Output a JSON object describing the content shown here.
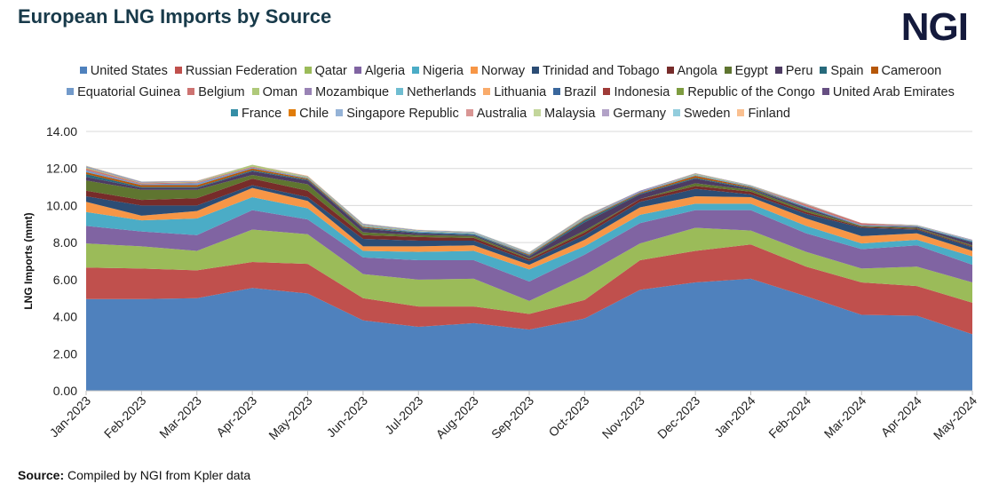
{
  "title": "European LNG Imports by Source",
  "logo": "NGI",
  "source_label": "Source:",
  "source_text": "Compiled by NGI from Kpler data",
  "chart_data": {
    "type": "area",
    "stacked": true,
    "title": "European LNG Imports by Source",
    "xlabel": "",
    "ylabel": "LNG Imports (mmt)",
    "ylim": [
      0,
      14
    ],
    "yticks": [
      "0.00",
      "2.00",
      "4.00",
      "6.00",
      "8.00",
      "10.00",
      "12.00",
      "14.00"
    ],
    "grid": true,
    "legend": "top",
    "categories": [
      "Jan-2023",
      "Feb-2023",
      "Mar-2023",
      "Apr-2023",
      "May-2023",
      "Jun-2023",
      "Jul-2023",
      "Aug-2023",
      "Sep-2023",
      "Oct-2023",
      "Nov-2023",
      "Dec-2023",
      "Jan-2024",
      "Feb-2024",
      "Mar-2024",
      "Apr-2024",
      "May-2024"
    ],
    "series": [
      {
        "name": "United States",
        "color": "#4F81BD",
        "values": [
          4.95,
          4.95,
          5.0,
          5.55,
          5.25,
          3.8,
          3.45,
          3.65,
          3.3,
          3.9,
          5.45,
          5.85,
          6.05,
          5.1,
          4.1,
          4.05,
          3.05
        ]
      },
      {
        "name": "Russian Federation",
        "color": "#C0504D",
        "values": [
          1.7,
          1.65,
          1.5,
          1.4,
          1.6,
          1.2,
          1.1,
          0.9,
          0.85,
          1.0,
          1.6,
          1.7,
          1.85,
          1.6,
          1.75,
          1.6,
          1.7
        ]
      },
      {
        "name": "Qatar",
        "color": "#9BBB59",
        "values": [
          1.3,
          1.2,
          1.05,
          1.75,
          1.6,
          1.3,
          1.45,
          1.5,
          0.7,
          1.35,
          0.9,
          1.25,
          0.75,
          0.8,
          0.75,
          1.05,
          1.1
        ]
      },
      {
        "name": "Algeria",
        "color": "#8064A2",
        "values": [
          0.95,
          0.8,
          0.85,
          1.05,
          0.8,
          0.9,
          1.05,
          1.0,
          1.05,
          1.1,
          1.1,
          0.95,
          1.1,
          1.0,
          1.05,
          1.15,
          0.95
        ]
      },
      {
        "name": "Nigeria",
        "color": "#4BACC6",
        "values": [
          0.75,
          0.6,
          0.9,
          0.7,
          0.6,
          0.35,
          0.45,
          0.5,
          0.65,
          0.45,
          0.45,
          0.35,
          0.35,
          0.4,
          0.3,
          0.3,
          0.45
        ]
      },
      {
        "name": "Norway",
        "color": "#F79646",
        "values": [
          0.55,
          0.25,
          0.4,
          0.5,
          0.4,
          0.25,
          0.3,
          0.3,
          0.25,
          0.35,
          0.4,
          0.4,
          0.35,
          0.4,
          0.4,
          0.35,
          0.3
        ]
      },
      {
        "name": "Trinidad and Tobago",
        "color": "#2C4D75",
        "values": [
          0.3,
          0.55,
          0.3,
          0.15,
          0.2,
          0.4,
          0.3,
          0.25,
          0.2,
          0.25,
          0.3,
          0.4,
          0.15,
          0.25,
          0.45,
          0.2,
          0.2
        ]
      },
      {
        "name": "Angola",
        "color": "#772C2A",
        "values": [
          0.3,
          0.3,
          0.4,
          0.35,
          0.35,
          0.2,
          0.2,
          0.15,
          0.1,
          0.15,
          0.15,
          0.15,
          0.15,
          0.1,
          0.05,
          0.05,
          0.05
        ]
      },
      {
        "name": "Egypt",
        "color": "#5F7530",
        "values": [
          0.55,
          0.55,
          0.45,
          0.2,
          0.35,
          0.15,
          0.1,
          0.1,
          0.05,
          0.1,
          0.0,
          0.15,
          0.1,
          0.1,
          0.05,
          0.05,
          0.05
        ]
      },
      {
        "name": "Peru",
        "color": "#4D3B62",
        "values": [
          0.2,
          0.1,
          0.1,
          0.2,
          0.2,
          0.2,
          0.1,
          0.05,
          0.1,
          0.45,
          0.25,
          0.25,
          0.05,
          0.1,
          0.0,
          0.05,
          0.15
        ]
      },
      {
        "name": "Spain",
        "color": "#276A7C",
        "values": [
          0.15,
          0.05,
          0.05,
          0.05,
          0.05,
          0.05,
          0.05,
          0.05,
          0.05,
          0.1,
          0.05,
          0.05,
          0.05,
          0.05,
          0.0,
          0.0,
          0.05
        ]
      },
      {
        "name": "Cameroon",
        "color": "#B65708",
        "values": [
          0.1,
          0.1,
          0.1,
          0.1,
          0.05,
          0.05,
          0.0,
          0.0,
          0.05,
          0.05,
          0.05,
          0.1,
          0.05,
          0.0,
          0.0,
          0.0,
          0.0
        ]
      },
      {
        "name": "Equatorial Guinea",
        "color": "#729ACA",
        "values": [
          0.1,
          0.05,
          0.1,
          0.05,
          0.05,
          0.05,
          0.05,
          0.05,
          0.05,
          0.05,
          0.05,
          0.05,
          0.05,
          0.05,
          0.05,
          0.05,
          0.05
        ]
      },
      {
        "name": "Belgium",
        "color": "#CD7371",
        "values": [
          0.1,
          0.05,
          0.05,
          0.05,
          0,
          0,
          0,
          0,
          0,
          0,
          0,
          0,
          0,
          0.1,
          0.1,
          0,
          0
        ]
      },
      {
        "name": "Oman",
        "color": "#AFC97A",
        "values": [
          0.05,
          0.03,
          0.03,
          0.1,
          0.05,
          0.05,
          0.03,
          0.03,
          0.03,
          0.05,
          0,
          0.05,
          0.03,
          0.02,
          0,
          0.03,
          0.02
        ]
      },
      {
        "name": "Mozambique",
        "color": "#9983B5",
        "values": [
          0.05,
          0.05,
          0.03,
          0,
          0.02,
          0.05,
          0.03,
          0.03,
          0.03,
          0.05,
          0.05,
          0.03,
          0.02,
          0.02,
          0,
          0.02,
          0.03
        ]
      },
      {
        "name": "Netherlands",
        "color": "#6FBDD1",
        "values": [
          0.03,
          0.01,
          0.01,
          0,
          0.01,
          0.02,
          0.02,
          0.02,
          0.02,
          0.02,
          0,
          0.01,
          0,
          0.01,
          0,
          0,
          0
        ]
      },
      {
        "name": "Lithuania",
        "color": "#F9AB6B",
        "values": [
          0.02,
          0.01,
          0.02,
          0,
          0.02,
          0.01,
          0.01,
          0.01,
          0.01,
          0.02,
          0,
          0.01,
          0,
          0.01,
          0,
          0,
          0
        ]
      },
      {
        "name": "Brazil",
        "color": "#3A679C",
        "values": [
          0,
          0,
          0,
          0,
          0,
          0,
          0,
          0,
          0,
          0,
          0,
          0,
          0,
          0,
          0,
          0,
          0
        ]
      },
      {
        "name": "Indonesia",
        "color": "#9F3B38",
        "values": [
          0,
          0,
          0,
          0,
          0,
          0,
          0,
          0,
          0,
          0,
          0,
          0,
          0,
          0,
          0,
          0,
          0
        ]
      },
      {
        "name": "Republic of the Congo",
        "color": "#7E9C40",
        "values": [
          0,
          0,
          0,
          0,
          0,
          0,
          0,
          0,
          0,
          0,
          0,
          0,
          0,
          0,
          0,
          0,
          0
        ]
      },
      {
        "name": "United Arab Emirates",
        "color": "#664F82",
        "values": [
          0,
          0,
          0,
          0,
          0,
          0,
          0,
          0,
          0,
          0,
          0,
          0,
          0,
          0,
          0,
          0,
          0
        ]
      },
      {
        "name": "France",
        "color": "#358EA6",
        "values": [
          0,
          0,
          0,
          0,
          0,
          0,
          0,
          0,
          0,
          0,
          0,
          0,
          0,
          0,
          0,
          0,
          0
        ]
      },
      {
        "name": "Chile",
        "color": "#E07C0A",
        "values": [
          0,
          0,
          0,
          0,
          0,
          0,
          0,
          0,
          0,
          0,
          0,
          0,
          0,
          0,
          0,
          0,
          0
        ]
      },
      {
        "name": "Singapore Republic",
        "color": "#95B3D7",
        "values": [
          0,
          0,
          0,
          0,
          0,
          0,
          0,
          0,
          0,
          0,
          0,
          0,
          0,
          0,
          0,
          0,
          0
        ]
      },
      {
        "name": "Australia",
        "color": "#D99694",
        "values": [
          0,
          0,
          0,
          0,
          0,
          0,
          0,
          0,
          0,
          0,
          0,
          0,
          0,
          0,
          0,
          0,
          0
        ]
      },
      {
        "name": "Malaysia",
        "color": "#C3D69B",
        "values": [
          0,
          0,
          0,
          0,
          0,
          0,
          0,
          0,
          0,
          0,
          0,
          0,
          0,
          0,
          0,
          0,
          0
        ]
      },
      {
        "name": "Germany",
        "color": "#B2A2C7",
        "values": [
          0,
          0,
          0,
          0,
          0,
          0,
          0,
          0,
          0,
          0,
          0,
          0,
          0,
          0,
          0,
          0,
          0
        ]
      },
      {
        "name": "Sweden",
        "color": "#93CDDD",
        "values": [
          0,
          0,
          0,
          0,
          0,
          0,
          0,
          0,
          0,
          0,
          0,
          0,
          0,
          0,
          0,
          0,
          0
        ]
      },
      {
        "name": "Finland",
        "color": "#FAC090",
        "values": [
          0,
          0,
          0,
          0,
          0,
          0,
          0,
          0,
          0,
          0,
          0,
          0,
          0,
          0,
          0,
          0,
          0
        ]
      }
    ]
  }
}
